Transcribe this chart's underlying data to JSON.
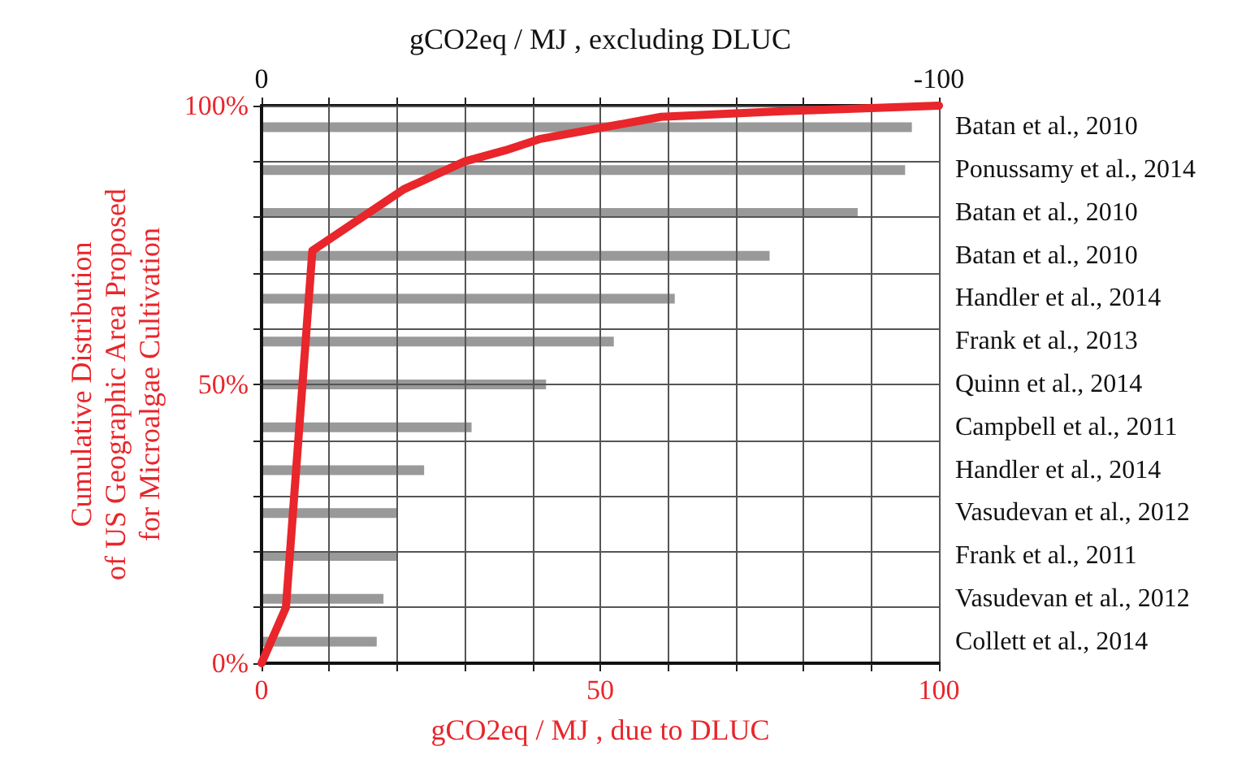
{
  "chart_data": [
    {
      "type": "bar",
      "orientation": "horizontal",
      "xlabel": "gCO2eq / MJ , excluding DLUC",
      "categories": [
        "Batan et al., 2010",
        "Ponussamy et al., 2014",
        "Batan et al., 2010",
        "Batan et al., 2010",
        "Handler et al., 2014",
        "Frank et al., 2013",
        "Quinn et al., 2014",
        "Campbell et al., 2011",
        "Handler et al., 2014",
        "Vasudevan et al., 2012",
        "Frank et al., 2011",
        "Vasudevan et al., 2012",
        "Collett et al., 2014"
      ],
      "xlim": [
        0,
        -100
      ],
      "xticks": [
        0,
        {
          "value": -10,
          "label": null
        },
        {
          "value": -20,
          "label": null
        },
        {
          "value": -30,
          "label": null
        },
        {
          "value": -40,
          "label": null
        },
        {
          "value": -50,
          "label": null
        },
        {
          "value": -60,
          "label": null
        },
        {
          "value": -70,
          "label": null
        },
        {
          "value": -80,
          "label": null
        },
        {
          "value": -90,
          "label": null
        },
        -100
      ],
      "color": "#999999",
      "values": [
        -96,
        -95,
        -88,
        -75,
        -61,
        -52,
        -42,
        -31,
        -24,
        -20,
        -20,
        -18,
        -17
      ]
    },
    {
      "type": "line",
      "xlabel": "gCO2eq / MJ , due to DLUC",
      "ylabel": "Cumulative Distribution\nof US Geographic Area Proposed\nfor Microalgae Cultivation",
      "x": [
        0,
        3.6,
        7.5,
        21,
        30,
        36,
        41,
        50,
        59,
        77,
        100
      ],
      "values": [
        0,
        10,
        74,
        85,
        90,
        92,
        94,
        96,
        98,
        99,
        100
      ],
      "color": "#e8262b",
      "xlim": [
        0,
        100
      ],
      "xticks": [
        0,
        {
          "value": 10,
          "label": null
        },
        {
          "value": 20,
          "label": null
        },
        {
          "value": 30,
          "label": null
        },
        {
          "value": 40,
          "label": null
        },
        50,
        {
          "value": 60,
          "label": null
        },
        {
          "value": 70,
          "label": null
        },
        {
          "value": 80,
          "label": null
        },
        {
          "value": 90,
          "label": null
        },
        100
      ],
      "ylim": [
        0,
        100
      ],
      "yticks": [
        {
          "value": 0,
          "label": "0%"
        },
        {
          "value": 10,
          "label": null
        },
        {
          "value": 20,
          "label": null
        },
        {
          "value": 30,
          "label": null
        },
        {
          "value": 40,
          "label": null
        },
        {
          "value": 50,
          "label": "50%"
        },
        {
          "value": 60,
          "label": null
        },
        {
          "value": 70,
          "label": null
        },
        {
          "value": 80,
          "label": null
        },
        {
          "value": 90,
          "label": null
        },
        {
          "value": 100,
          "label": "100%"
        }
      ],
      "grid": true,
      "marker": "none",
      "line_style": "solid"
    }
  ]
}
